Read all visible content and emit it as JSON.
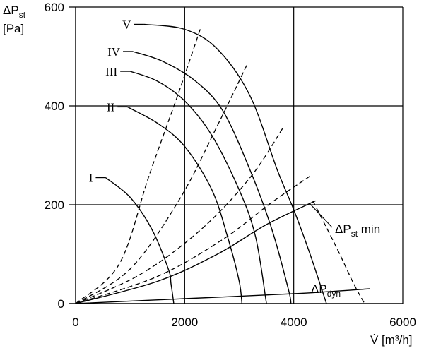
{
  "chart_data": {
    "type": "line",
    "ylabel_line1": "ΔP",
    "ylabel_sub": "st",
    "ylabel_line2": "[Pa]",
    "xlabel": "V̇ [m³/h]",
    "xlim": [
      0,
      6000
    ],
    "ylim": [
      0,
      600
    ],
    "x_ticks": [
      0,
      2000,
      4000,
      6000
    ],
    "y_ticks": [
      0,
      200,
      400,
      600
    ],
    "grid": true,
    "fan_curves": [
      {
        "label": "I",
        "points": [
          [
            550,
            255
          ],
          [
            1000,
            215
          ],
          [
            1400,
            150
          ],
          [
            1700,
            70
          ],
          [
            1750,
            40
          ],
          [
            1800,
            0
          ]
        ]
      },
      {
        "label": "II",
        "points": [
          [
            950,
            398
          ],
          [
            1500,
            365
          ],
          [
            2000,
            318
          ],
          [
            2500,
            230
          ],
          [
            2800,
            130
          ],
          [
            3000,
            45
          ],
          [
            3050,
            0
          ]
        ]
      },
      {
        "label": "III",
        "points": [
          [
            1000,
            470
          ],
          [
            1500,
            450
          ],
          [
            2000,
            410
          ],
          [
            2500,
            340
          ],
          [
            3000,
            230
          ],
          [
            3300,
            135
          ],
          [
            3500,
            0
          ]
        ]
      },
      {
        "label": "IV",
        "points": [
          [
            1050,
            510
          ],
          [
            1600,
            490
          ],
          [
            2200,
            450
          ],
          [
            2700,
            390
          ],
          [
            3200,
            270
          ],
          [
            3600,
            150
          ],
          [
            3900,
            30
          ],
          [
            3950,
            0
          ]
        ]
      },
      {
        "label": "V",
        "points": [
          [
            1250,
            565
          ],
          [
            2000,
            555
          ],
          [
            2600,
            515
          ],
          [
            3200,
            420
          ],
          [
            3700,
            270
          ],
          [
            4000,
            190
          ],
          [
            4300,
            100
          ],
          [
            4600,
            0
          ]
        ]
      }
    ],
    "system_curves": [
      {
        "points": [
          [
            0,
            0
          ],
          [
            800,
            80
          ],
          [
            1350,
            260
          ],
          [
            1900,
            430
          ],
          [
            2300,
            560
          ]
        ]
      },
      {
        "points": [
          [
            0,
            0
          ],
          [
            1000,
            70
          ],
          [
            1900,
            210
          ],
          [
            2600,
            360
          ],
          [
            3150,
            485
          ]
        ]
      },
      {
        "points": [
          [
            0,
            0
          ],
          [
            1200,
            60
          ],
          [
            2300,
            150
          ],
          [
            3200,
            255
          ],
          [
            3800,
            355
          ]
        ]
      },
      {
        "points": [
          [
            0,
            0
          ],
          [
            1500,
            55
          ],
          [
            2700,
            130
          ],
          [
            3600,
            205
          ],
          [
            4300,
            258
          ]
        ]
      }
    ],
    "min_curve": {
      "points": [
        [
          0,
          0
        ],
        [
          1500,
          45
        ],
        [
          2600,
          100
        ],
        [
          3500,
          160
        ],
        [
          4400,
          208
        ]
      ]
    },
    "dyn_curve": {
      "points": [
        [
          0,
          0
        ],
        [
          2000,
          10
        ],
        [
          4000,
          20
        ],
        [
          5400,
          30
        ]
      ]
    },
    "max_curve": {
      "points": [
        [
          4350,
          208
        ],
        [
          4800,
          110
        ],
        [
          5100,
          40
        ],
        [
          5300,
          0
        ]
      ]
    },
    "annotations": {
      "pst_min_main": "ΔP",
      "pst_min_sub": "st",
      "pst_min_tail": " min",
      "pdyn_main": "ΔP",
      "pdyn_sub": "dyn"
    }
  }
}
